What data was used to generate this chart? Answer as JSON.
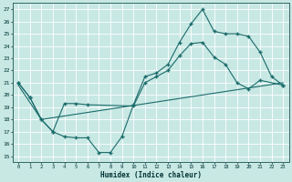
{
  "xlabel": "Humidex (Indice chaleur)",
  "bg_color": "#c8e8e4",
  "grid_color": "#ffffff",
  "line_color": "#1a6b6b",
  "xlim": [
    -0.5,
    23.5
  ],
  "ylim": [
    14.5,
    27.5
  ],
  "xticks": [
    0,
    1,
    2,
    3,
    4,
    5,
    6,
    7,
    8,
    9,
    10,
    11,
    12,
    13,
    14,
    15,
    16,
    17,
    18,
    19,
    20,
    21,
    22,
    23
  ],
  "yticks": [
    15,
    16,
    17,
    18,
    19,
    20,
    21,
    22,
    23,
    24,
    25,
    26,
    27
  ],
  "line1_x": [
    0,
    1,
    2,
    3,
    4,
    5,
    6,
    7,
    8,
    9,
    10,
    11,
    12,
    13,
    14,
    15,
    16,
    17,
    18,
    19,
    20,
    21,
    22,
    23
  ],
  "line1_y": [
    21,
    19.8,
    18,
    17,
    16.6,
    16.5,
    16.5,
    15.3,
    15.3,
    16.6,
    19.2,
    21.5,
    21.8,
    22.5,
    24.3,
    25.8,
    27.0,
    25.2,
    25.0,
    25.0,
    24.8,
    23.5,
    21.5,
    20.8
  ],
  "line2_x": [
    0,
    1,
    2,
    3,
    4,
    5,
    6,
    10,
    11,
    12,
    13,
    14,
    15,
    16,
    17,
    18,
    19,
    20,
    21,
    23
  ],
  "line2_y": [
    21,
    19.8,
    18,
    17.0,
    19.3,
    19.3,
    19.2,
    19.1,
    21.0,
    21.5,
    22.0,
    23.2,
    24.2,
    24.3,
    23.1,
    22.5,
    21.0,
    20.5,
    21.2,
    20.8
  ],
  "line3_x": [
    0,
    2,
    23
  ],
  "line3_y": [
    20.8,
    18.0,
    21.0
  ]
}
